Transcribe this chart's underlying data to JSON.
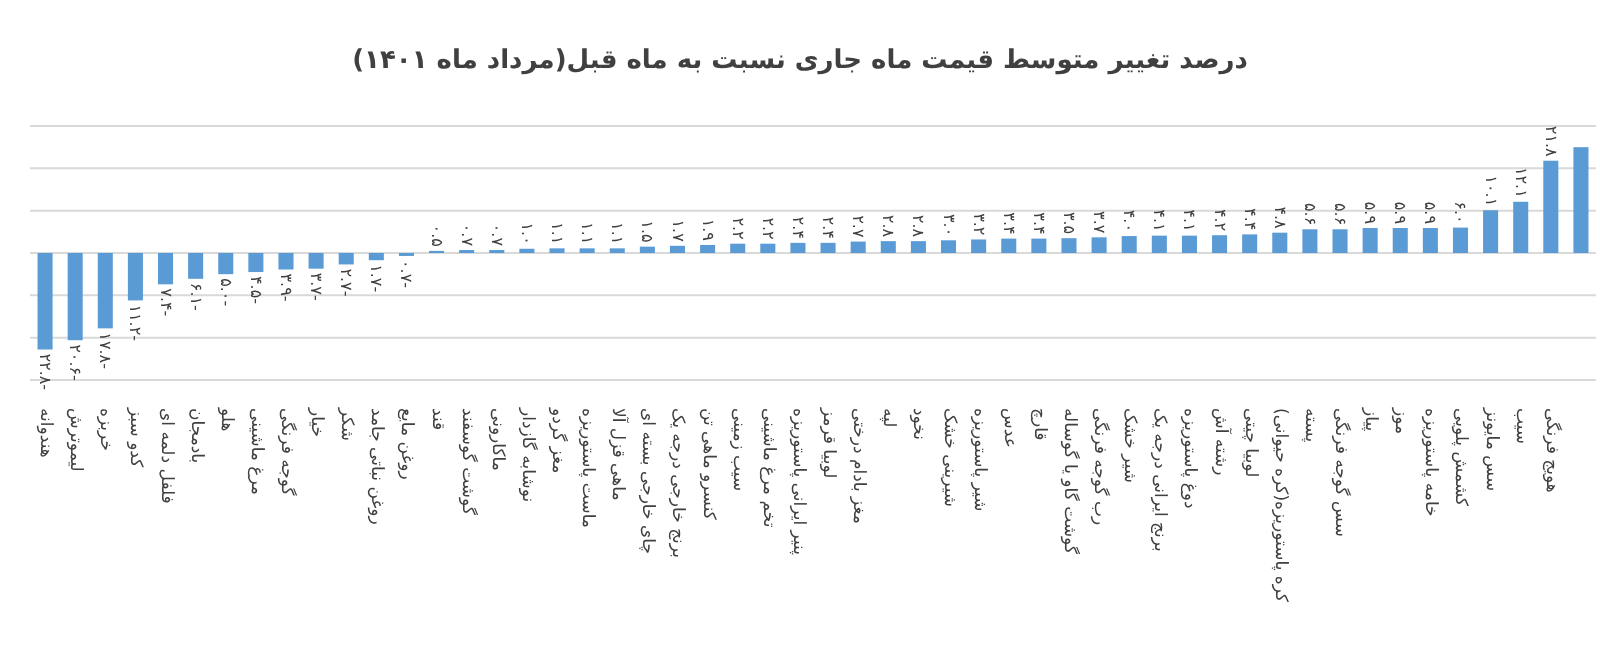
{
  "chart_data": {
    "type": "bar",
    "title": "درصد تغییر متوسط قیمت ماه جاری نسبت به ماه قبل(مرداد ماه ۱۴۰۱)",
    "categories": [
      "هندوانه",
      "لیموترش",
      "خربزه",
      "کدو سبز",
      "فلفل دلمه ای",
      "بادمجان",
      "هلو",
      "مرغ ماشینی",
      "گوجه فرنگی",
      "خیار",
      "شکر",
      "روغن نباتی جامد",
      "روغن مایع",
      "قند",
      "گوشت گوسفند",
      "ماکارونی",
      "نوشابه گازدار",
      "مغز گردو",
      "ماست پاستوریزه",
      "ماهی قزل آلا",
      "چای خارجی بسته ای",
      "برنج خارجی درجه یک",
      "کنسرو ماهی تن",
      "سیب زمینی",
      "تخم مرغ ماشینی",
      "پنیر ایرانی پاستوریزه",
      "لوبیا قرمز",
      "مغز بادام درختی",
      "لپه",
      "نخود",
      "شیرینی خشک",
      "شیر پاستوریزه",
      "عدس",
      "قارچ",
      "گوشت گاو یا گوساله",
      "رب گوجه فرنگی",
      "شیر خشک",
      "برنج ایرانی درجه یک",
      "دوغ پاستوریزه",
      "رشته آش",
      "لوبیا چیتی",
      "کره پاستوریزه(کره حیوانی)",
      "پسته",
      "سس گوجه فرنگی",
      "پیاز",
      "موز",
      "خامه پاستوریزه",
      "کشمش پلویی",
      "سس مایونز",
      "سیب",
      "هویج فرنگی",
      null
    ],
    "values": [
      -22.8,
      -20.6,
      -17.8,
      -11.2,
      -7.4,
      -6.1,
      -5.0,
      -4.5,
      -3.9,
      -3.7,
      -2.7,
      -1.7,
      -0.7,
      0.5,
      0.7,
      0.7,
      1.0,
      1.1,
      1.1,
      1.1,
      1.5,
      1.7,
      1.9,
      2.2,
      2.2,
      2.4,
      2.4,
      2.7,
      2.8,
      2.8,
      3.0,
      3.2,
      3.4,
      3.4,
      3.5,
      3.7,
      4.0,
      4.1,
      4.1,
      4.2,
      4.4,
      4.8,
      5.6,
      5.6,
      5.9,
      5.9,
      5.9,
      6.0,
      10.1,
      12.1,
      21.8,
      25.0
    ],
    "value_labels": [
      "-۲۲.۸",
      "-۲۰.۶",
      "-۱۷.۸",
      "-۱۱.۲",
      "-۷.۴",
      "-۶.۱",
      "-۵.۰",
      "-۴.۵",
      "-۳.۹",
      "-۳.۷",
      "-۲.۷",
      "-۱.۷",
      "-۰.۷",
      "۰.۵",
      "۰.۷",
      "۰.۷",
      "۱.۰",
      "۱.۱",
      "۱.۱",
      "۱.۱",
      "۱.۵",
      "۱.۷",
      "۱.۹",
      "۲.۲",
      "۲.۲",
      "۲.۴",
      "۲.۴",
      "۲.۷",
      "۲.۸",
      "۲.۸",
      "۳.۰",
      "۳.۲",
      "۳.۴",
      "۳.۴",
      "۳.۵",
      "۳.۷",
      "۴.۰",
      "۴.۱",
      "۴.۱",
      "۴.۲",
      "۴.۴",
      "۴.۸",
      "۵.۶",
      "۵.۶",
      "۵.۹",
      "۵.۹",
      "۵.۹",
      "۶.۰",
      "۱۰.۱",
      "۱۲.۱",
      "۲۱.۸",
      null
    ],
    "color": "#5b9bd5",
    "ylim": [
      -30,
      30
    ],
    "yticks": [
      {
        "value": -30,
        "label": null
      },
      {
        "value": -20,
        "label": null
      },
      {
        "value": -10,
        "label": null
      },
      {
        "value": 0,
        "label": null
      },
      {
        "value": 10,
        "label": null
      },
      {
        "value": 20,
        "label": null
      },
      {
        "value": 30,
        "label": null
      }
    ],
    "grid": "y",
    "tick_labels": "x"
  }
}
